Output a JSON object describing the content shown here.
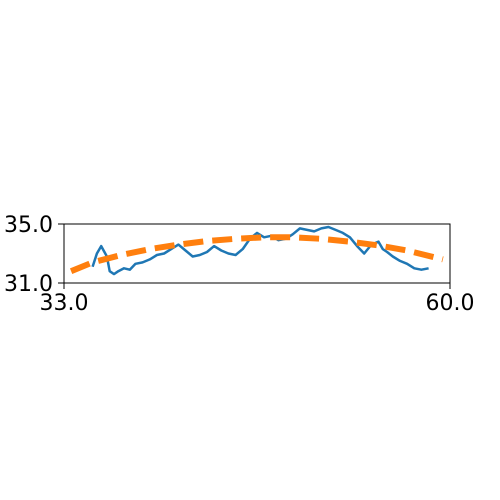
{
  "chart_data": {
    "type": "line",
    "title": "",
    "xlabel": "",
    "ylabel": "",
    "xlim": [
      33.0,
      60.0
    ],
    "ylim": [
      31.0,
      35.0
    ],
    "x_ticks": [
      {
        "value": 33.0,
        "label": "33.0"
      },
      {
        "value": 60.0,
        "label": "60.0"
      }
    ],
    "y_ticks": [
      {
        "value": 31.0,
        "label": "31.0"
      },
      {
        "value": 35.0,
        "label": "35.0"
      }
    ],
    "grid": false,
    "legend": "none",
    "series": [
      {
        "style": "solid",
        "color": "#1f77b4",
        "x": [
          35.0,
          35.3,
          35.6,
          36.0,
          36.2,
          36.5,
          36.8,
          37.2,
          37.6,
          38.0,
          38.5,
          39.0,
          39.5,
          40.0,
          40.5,
          41.0,
          41.5,
          42.0,
          42.5,
          43.0,
          43.5,
          44.0,
          44.5,
          45.0,
          45.5,
          46.0,
          46.5,
          47.0,
          47.5,
          48.0,
          48.5,
          49.0,
          49.5,
          50.0,
          50.5,
          51.0,
          51.5,
          52.0,
          52.5,
          53.0,
          53.5,
          54.0,
          54.5,
          55.0,
          55.3,
          55.6,
          56.0,
          56.5,
          57.0,
          57.5,
          58.0,
          58.5
        ],
        "y": [
          32.1,
          33.0,
          33.5,
          32.8,
          31.8,
          31.6,
          31.8,
          32.0,
          31.9,
          32.3,
          32.4,
          32.6,
          32.9,
          33.0,
          33.3,
          33.6,
          33.2,
          32.8,
          32.9,
          33.1,
          33.5,
          33.2,
          33.0,
          32.9,
          33.3,
          34.0,
          34.4,
          34.1,
          34.2,
          33.9,
          34.0,
          34.3,
          34.7,
          34.6,
          34.5,
          34.7,
          34.8,
          34.6,
          34.4,
          34.1,
          33.5,
          33.0,
          33.6,
          33.8,
          33.3,
          33.1,
          32.8,
          32.5,
          32.3,
          32.0,
          31.9,
          32.0
        ]
      },
      {
        "style": "dashed",
        "color": "#ff7f0e",
        "x": [
          33.5,
          35.0,
          37.0,
          39.0,
          41.0,
          43.0,
          45.0,
          47.0,
          49.0,
          51.0,
          53.0,
          55.0,
          57.0,
          59.5
        ],
        "y": [
          31.8,
          32.4,
          32.9,
          33.3,
          33.6,
          33.85,
          34.0,
          34.1,
          34.1,
          34.0,
          33.8,
          33.55,
          33.2,
          32.6
        ]
      }
    ]
  }
}
